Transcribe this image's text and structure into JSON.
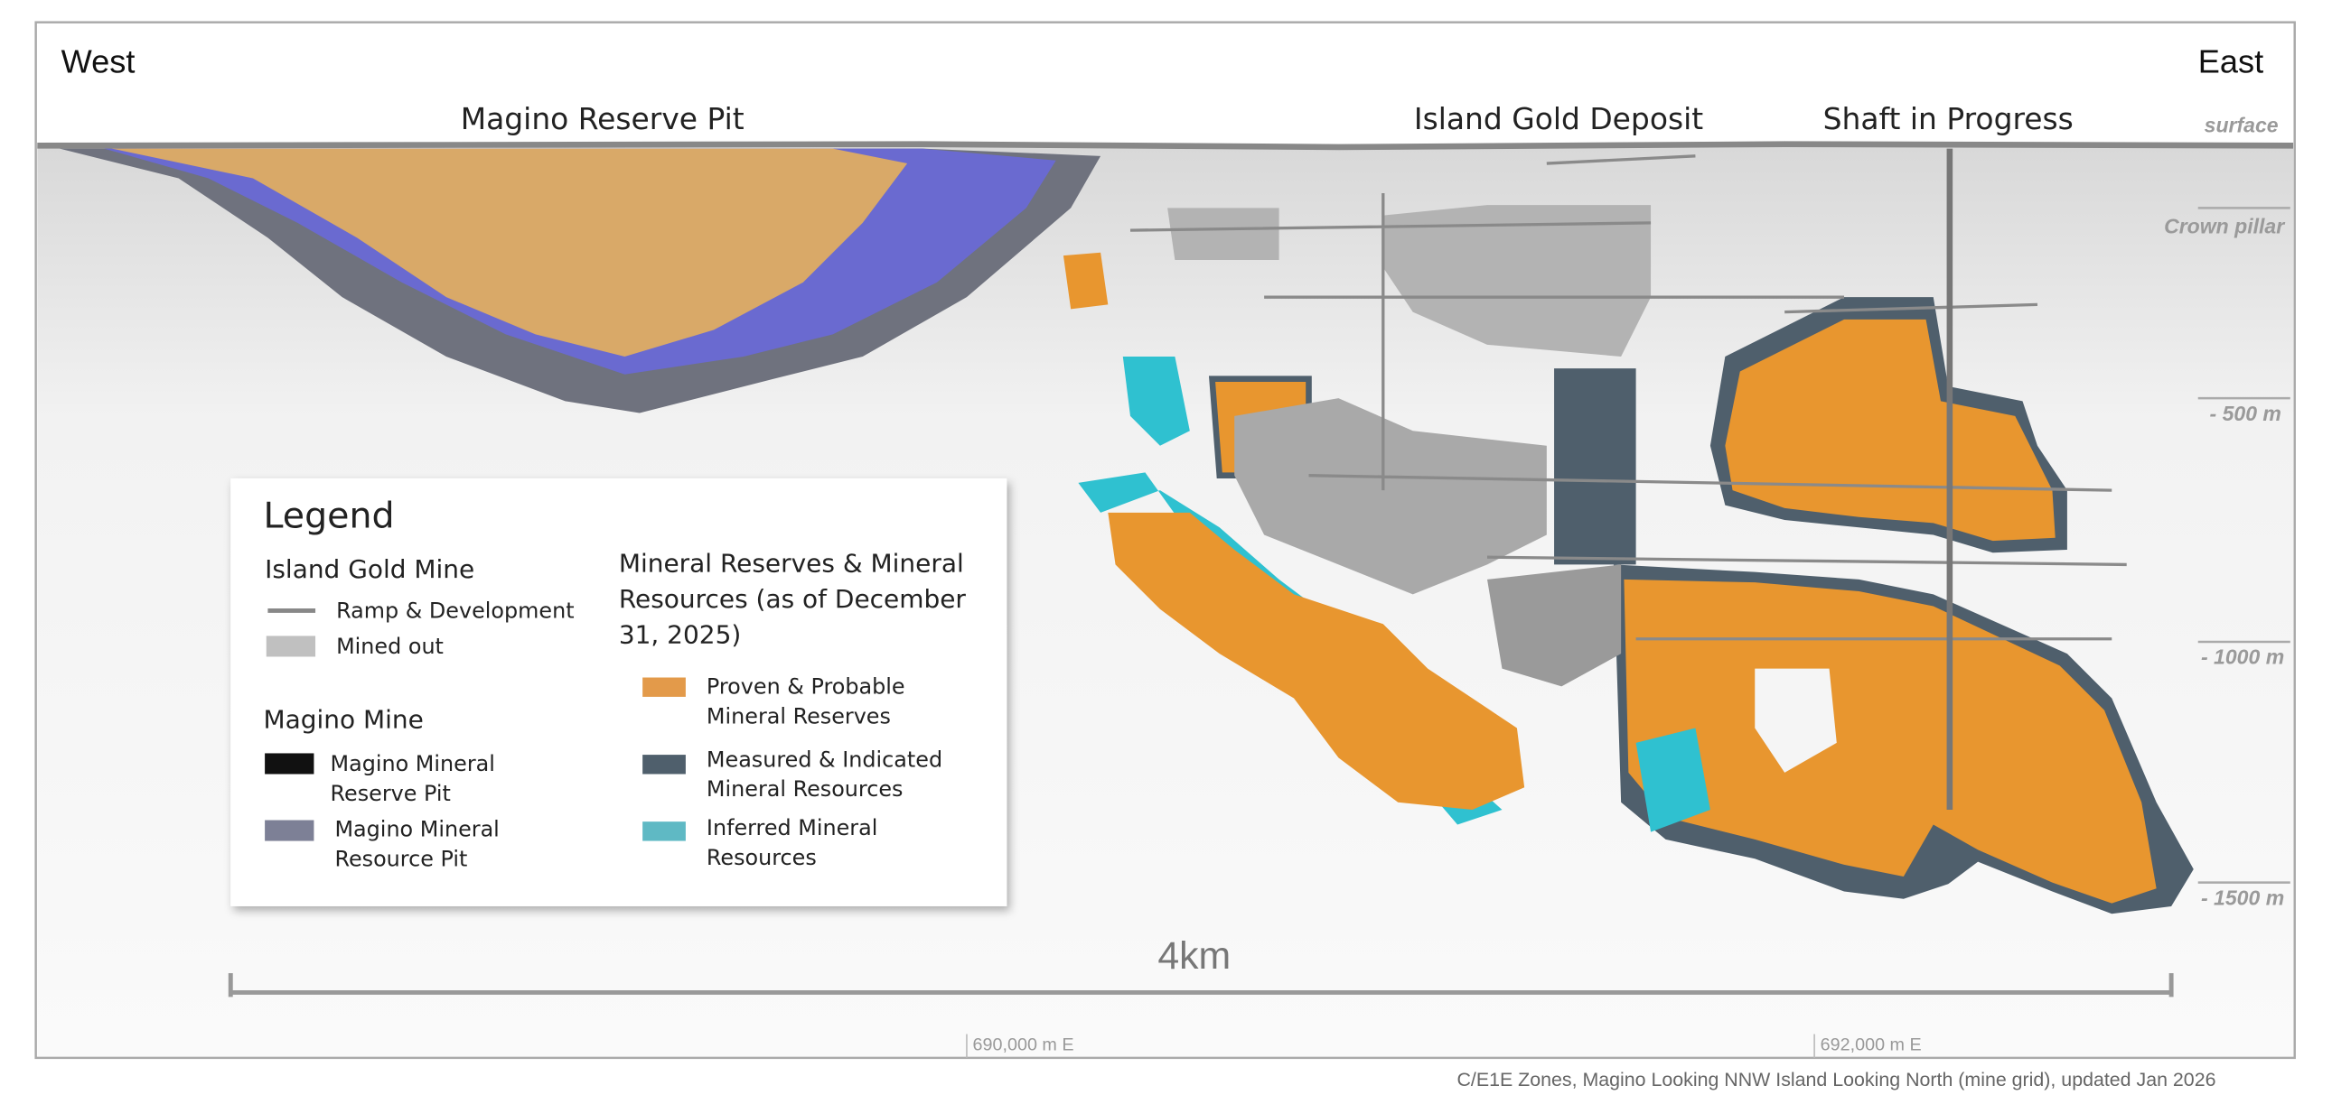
{
  "header": {
    "west": "West",
    "east": "East"
  },
  "labels": {
    "pit": "Magino Reserve Pit",
    "deposit": "Island Gold Deposit",
    "shaft": "Shaft in Progress"
  },
  "depth_labels": [
    "surface",
    "Crown pillar",
    "- 500 m",
    "- 1000 m",
    "- 1500 m"
  ],
  "legend": {
    "title": "Legend",
    "island_gold": {
      "title": "Island Gold Mine",
      "items": [
        [
          "Ramp & Development"
        ],
        [
          "Mined out"
        ]
      ]
    },
    "magino": {
      "title": "Magino Mine",
      "items": [
        [
          "Magino Mineral",
          "Reserve Pit"
        ],
        [
          "Magino Mineral",
          "Resource Pit"
        ]
      ]
    },
    "resources": {
      "title": [
        "Mineral Reserves & Mineral",
        "Resources (as of December",
        "31, 2025)"
      ],
      "items": [
        [
          "Proven & Probable",
          "Mineral Reserves"
        ],
        [
          "Measured & Indicated",
          "Mineral Resources"
        ],
        [
          "Inferred Mineral",
          "Resources"
        ]
      ]
    }
  },
  "scale_bar": "4km",
  "eastings": [
    "690,000 m E",
    "692,000 m E"
  ],
  "caption": "C/E1E Zones, Magino Looking NNW Island Looking North (mine grid), updated Jan 2026"
}
